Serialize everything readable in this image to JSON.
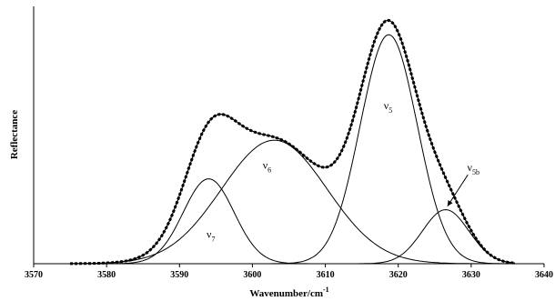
{
  "chart_data": {
    "type": "line",
    "title": "",
    "xlabel": "Wavenumber/cm",
    "xlabel_superscript": "-1",
    "ylabel": "Reflectance",
    "xlim": [
      3570,
      3640
    ],
    "ylim": [
      0,
      1.0
    ],
    "x_ticks": [
      "3570",
      "3580",
      "3590",
      "3600",
      "3610",
      "3620",
      "3630",
      "3640"
    ],
    "y_tick_labels_shown": false,
    "grid": false,
    "legend": "none",
    "components": [
      {
        "label": "ν7",
        "center": 3594,
        "amplitude": 0.33,
        "fwhm": 8.2
      },
      {
        "label": "ν6",
        "center": 3603,
        "amplitude": 0.48,
        "fwhm": 17.0
      },
      {
        "label": "ν5",
        "center": 3618.7,
        "amplitude": 0.89,
        "fwhm": 9.2
      },
      {
        "label": "ν5b",
        "center": 3626.5,
        "amplitude": 0.21,
        "fwhm": 7.5
      }
    ],
    "series": [
      {
        "style": "dashed",
        "description": "measured spectrum"
      },
      {
        "style": "solid",
        "description": "fitted sum"
      }
    ],
    "annotations": [
      {
        "base": "ν",
        "sub": "7",
        "x": 3594.3,
        "y": 0.1
      },
      {
        "base": "ν",
        "sub": "6",
        "x": 3602,
        "y": 0.37
      },
      {
        "base": "ν",
        "sub": "5",
        "x": 3618.6,
        "y": 0.6
      },
      {
        "base": "ν",
        "sub": "5b",
        "x": 3630.3,
        "y": 0.36,
        "arrow_to": [
          3626.5,
          0.22
        ]
      }
    ]
  }
}
